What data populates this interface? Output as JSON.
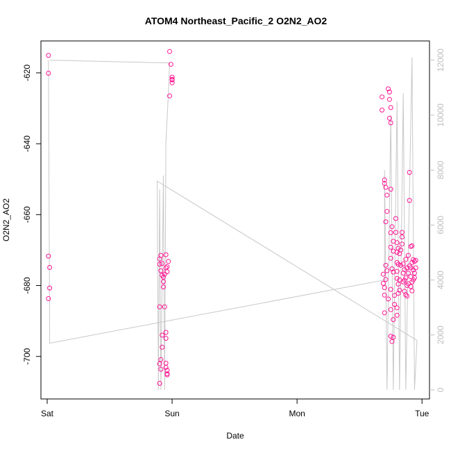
{
  "chart_data": {
    "type": "scatter",
    "title": "ATOM4 Northeast_Pacific_2 O2N2_AO2",
    "xlabel": "Date",
    "ylabel": "O2N2_AO2",
    "x_ticks": [
      "Sat",
      "Sun",
      "Mon",
      "Tue"
    ],
    "x_range_days": [
      -0.05,
      3.06
    ],
    "ylim": [
      -712,
      -611
    ],
    "y_ticks": [
      -620,
      -640,
      -660,
      -680,
      -700
    ],
    "y2lim": [
      -330,
      12700
    ],
    "y2_ticks": [
      0,
      2000,
      4000,
      6000,
      8000,
      10000,
      12000
    ],
    "grid": false,
    "colors": {
      "points": "#ff1493",
      "line": "#c8c8c8",
      "right_axis": "#bdbdbd",
      "axis": "#000000"
    },
    "series": [
      {
        "values": [
          [
            0.01,
            -615.1
          ],
          [
            0.01,
            -620.1
          ],
          [
            0.01,
            -671.7
          ],
          [
            0.02,
            -674.9
          ],
          [
            0.02,
            -680.7
          ],
          [
            0.01,
            -683.7
          ],
          [
            0.9,
            -672.5
          ],
          [
            0.9,
            -674.0
          ],
          [
            0.91,
            -675.8
          ],
          [
            0.92,
            -673.8
          ],
          [
            0.91,
            -671.5
          ],
          [
            0.92,
            -677.1
          ],
          [
            0.9,
            -686.0
          ],
          [
            0.93,
            -680.4
          ],
          [
            0.92,
            -694.0
          ],
          [
            0.92,
            -697.4
          ],
          [
            0.91,
            -700.9
          ],
          [
            0.9,
            -702.1
          ],
          [
            0.91,
            -703.6
          ],
          [
            0.9,
            -707.6
          ],
          [
            0.93,
            -678.9
          ],
          [
            0.93,
            -677.6
          ],
          [
            0.94,
            -686.0
          ],
          [
            0.94,
            -676.8
          ],
          [
            0.95,
            -671.3
          ],
          [
            0.95,
            -675.0
          ],
          [
            0.95,
            -693.2
          ],
          [
            0.95,
            -694.9
          ],
          [
            0.96,
            -674.7
          ],
          [
            0.96,
            -676.1
          ],
          [
            0.97,
            -673.2
          ],
          [
            0.95,
            -701.9
          ],
          [
            0.95,
            -703.1
          ],
          [
            0.96,
            -703.9
          ],
          [
            0.96,
            -704.9
          ],
          [
            0.96,
            -705.2
          ],
          [
            0.98,
            -614.0
          ],
          [
            0.99,
            -617.6
          ],
          [
            1.0,
            -621.2
          ],
          [
            1.0,
            -622.0
          ],
          [
            1.0,
            -622.8
          ],
          [
            0.98,
            -626.5
          ],
          [
            1.0,
            -621.8
          ],
          [
            2.68,
            -626.8
          ],
          [
            2.68,
            -630.5
          ],
          [
            2.7,
            -650.2
          ],
          [
            2.7,
            -651.2
          ],
          [
            2.71,
            -652.3
          ],
          [
            2.72,
            -654.5
          ],
          [
            2.72,
            -659.1
          ],
          [
            2.69,
            -676.8
          ],
          [
            2.69,
            -679.4
          ],
          [
            2.7,
            -680.6
          ],
          [
            2.7,
            -682.7
          ],
          [
            2.7,
            -687.7
          ],
          [
            2.71,
            -662.0
          ],
          [
            2.71,
            -674.3
          ],
          [
            2.71,
            -678.3
          ],
          [
            2.72,
            -675.8
          ],
          [
            2.73,
            -683.8
          ],
          [
            2.73,
            -624.5
          ],
          [
            2.74,
            -625.4
          ],
          [
            2.74,
            -627.5
          ],
          [
            2.74,
            -632.8
          ],
          [
            2.75,
            -629.8
          ],
          [
            2.75,
            -634.1
          ],
          [
            2.75,
            -652.8
          ],
          [
            2.75,
            -665.1
          ],
          [
            2.75,
            -669.2
          ],
          [
            2.75,
            -672.3
          ],
          [
            2.75,
            -681.1
          ],
          [
            2.75,
            -686.8
          ],
          [
            2.75,
            -694.3
          ],
          [
            2.76,
            -663.4
          ],
          [
            2.77,
            -667.5
          ],
          [
            2.77,
            -670.3
          ],
          [
            2.76,
            -675.3
          ],
          [
            2.77,
            -676.2
          ],
          [
            2.78,
            -682.8
          ],
          [
            2.78,
            -685.3
          ],
          [
            2.77,
            -689.6
          ],
          [
            2.77,
            -694.6
          ],
          [
            2.76,
            -695.8
          ],
          [
            2.79,
            -661.1
          ],
          [
            2.79,
            -665.0
          ],
          [
            2.8,
            -667.9
          ],
          [
            2.8,
            -670.6
          ],
          [
            2.8,
            -673.5
          ],
          [
            2.8,
            -676.0
          ],
          [
            2.8,
            -678.0
          ],
          [
            2.81,
            -674.0
          ],
          [
            2.81,
            -679.6
          ],
          [
            2.81,
            -682.2
          ],
          [
            2.82,
            -681.3
          ],
          [
            2.8,
            -686.3
          ],
          [
            2.8,
            -688.4
          ],
          [
            2.81,
            -669.5
          ],
          [
            2.82,
            -671.0
          ],
          [
            2.82,
            -678.4
          ],
          [
            2.83,
            -670.0
          ],
          [
            2.83,
            -674.3
          ],
          [
            2.84,
            -665.0
          ],
          [
            2.84,
            -666.3
          ],
          [
            2.84,
            -668.3
          ],
          [
            2.85,
            -673.9
          ],
          [
            2.85,
            -676.5
          ],
          [
            2.85,
            -679.0
          ],
          [
            2.86,
            -675.5
          ],
          [
            2.86,
            -678.5
          ],
          [
            2.86,
            -681.6
          ],
          [
            2.87,
            -672.6
          ],
          [
            2.87,
            -677.8
          ],
          [
            2.87,
            -682.6
          ],
          [
            2.88,
            -675.0
          ],
          [
            2.88,
            -680.0
          ],
          [
            2.88,
            -683.0
          ],
          [
            2.89,
            -676.5
          ],
          [
            2.89,
            -679.5
          ],
          [
            2.9,
            -648.1
          ],
          [
            2.9,
            -656.0
          ],
          [
            2.91,
            -669.0
          ],
          [
            2.91,
            -675.0
          ],
          [
            2.91,
            -677.5
          ],
          [
            2.92,
            -668.8
          ],
          [
            2.92,
            -673.5
          ],
          [
            2.92,
            -679.0
          ],
          [
            2.93,
            -672.7
          ],
          [
            2.93,
            -675.6
          ],
          [
            2.93,
            -678.4
          ],
          [
            2.94,
            -673.2
          ],
          [
            2.94,
            -676.5
          ],
          [
            2.94,
            -677.8
          ],
          [
            2.95,
            -672.9
          ],
          [
            2.95,
            -675.0
          ],
          [
            2.92,
            -681.5
          ],
          [
            2.91,
            -680.3
          ],
          [
            2.9,
            -674.5
          ],
          [
            2.89,
            -671.5
          ]
        ]
      },
      {
        "axis": "right",
        "values": [
          [
            0.01,
            12000
          ],
          [
            0.02,
            1700
          ],
          [
            2.7,
            4000
          ],
          [
            2.7,
            8000
          ],
          [
            2.72,
            0
          ],
          [
            2.75,
            10000
          ],
          [
            2.77,
            0
          ],
          [
            2.8,
            10500
          ],
          [
            2.82,
            0
          ],
          [
            2.85,
            10800
          ],
          [
            2.87,
            0
          ],
          [
            2.92,
            12100
          ],
          [
            2.94,
            0
          ],
          [
            2.96,
            1800
          ],
          [
            0.88,
            7600
          ],
          [
            0.89,
            0
          ],
          [
            0.9,
            7300
          ],
          [
            0.91,
            0
          ],
          [
            0.93,
            7800
          ],
          [
            0.94,
            0
          ],
          [
            0.95,
            9000
          ],
          [
            0.97,
            10800
          ],
          [
            0.98,
            11900
          ],
          [
            0.02,
            12000
          ]
        ]
      }
    ]
  }
}
